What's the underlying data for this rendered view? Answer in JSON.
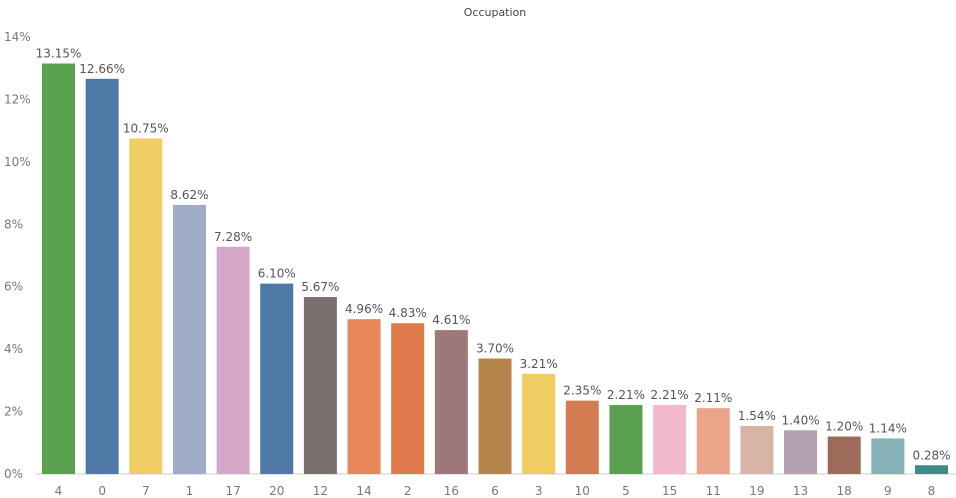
{
  "chart_data": {
    "type": "bar",
    "title": "Occupation",
    "xlabel": "",
    "ylabel": "",
    "categories": [
      "4",
      "0",
      "7",
      "1",
      "17",
      "20",
      "12",
      "14",
      "2",
      "16",
      "6",
      "3",
      "10",
      "5",
      "15",
      "11",
      "19",
      "13",
      "18",
      "9",
      "8"
    ],
    "values": [
      13.15,
      12.66,
      10.75,
      8.62,
      7.28,
      6.1,
      5.67,
      4.96,
      4.83,
      4.61,
      3.7,
      3.21,
      2.35,
      2.21,
      2.21,
      2.11,
      1.54,
      1.4,
      1.2,
      1.14,
      0.28
    ],
    "value_labels": [
      "13.15%",
      "12.66%",
      "10.75%",
      "8.62%",
      "7.28%",
      "6.10%",
      "5.67%",
      "4.96%",
      "4.83%",
      "4.61%",
      "3.70%",
      "3.21%",
      "2.35%",
      "2.21%",
      "2.21%",
      "2.11%",
      "1.54%",
      "1.40%",
      "1.20%",
      "1.14%",
      "0.28%"
    ],
    "y_ticks": [
      "0%",
      "2%",
      "4%",
      "6%",
      "8%",
      "10%",
      "12%",
      "14%"
    ],
    "ylim": [
      0,
      14
    ],
    "grid": false,
    "colors": [
      "#59a14f",
      "#4e79a7",
      "#f1ce63",
      "#a0abc8",
      "#d4a6c8",
      "#4e79a7",
      "#79706e",
      "#e8875a",
      "#e07b4c",
      "#9d7878",
      "#b6854d",
      "#f1ce63",
      "#d37c52",
      "#59a14f",
      "#f2b8cc",
      "#e9a48a",
      "#d7b5a6",
      "#b5a0b0",
      "#9c6b5a",
      "#86b2b7",
      "#3d8a86"
    ]
  }
}
